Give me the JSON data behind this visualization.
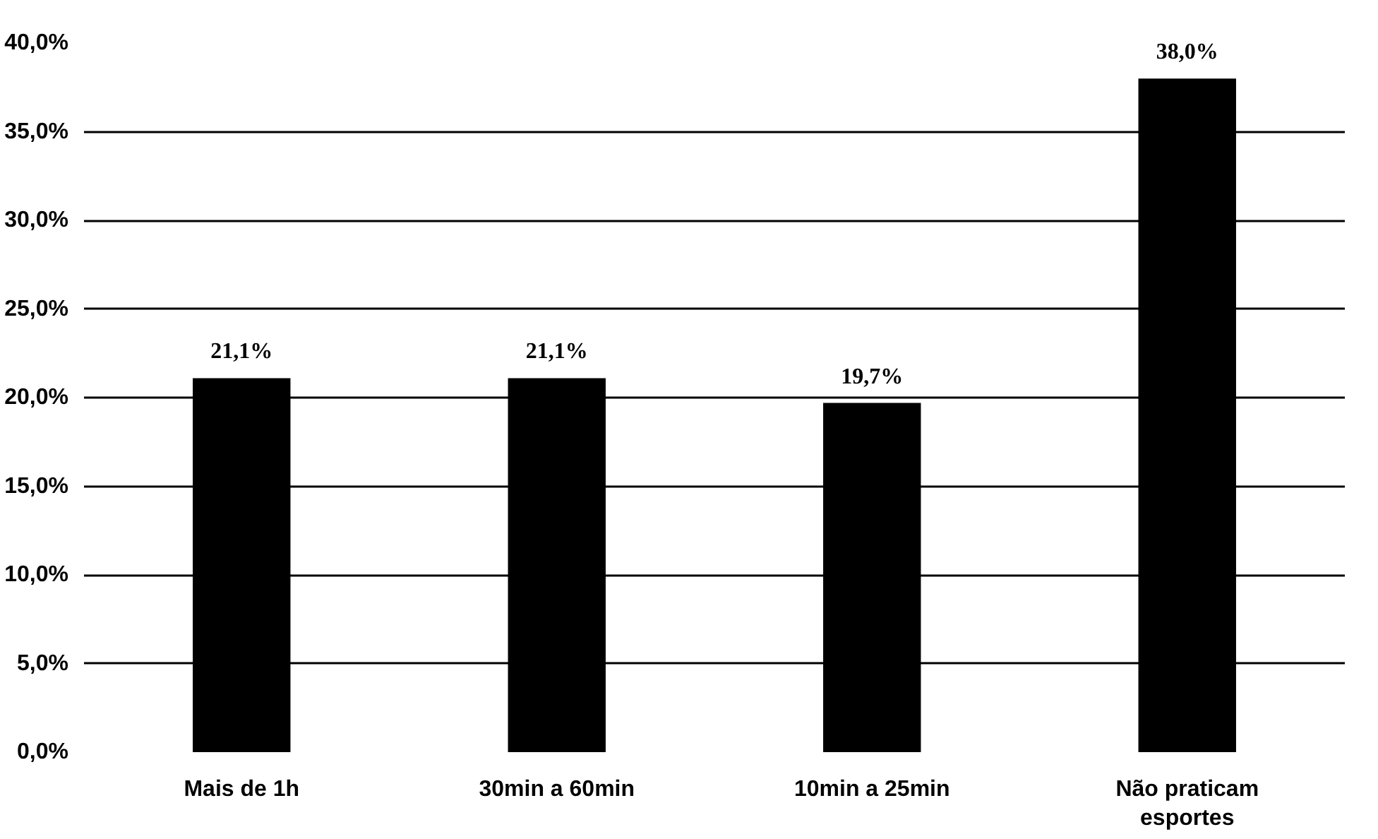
{
  "chart_data": {
    "type": "bar",
    "categories": [
      "Mais de 1h",
      "30min a 60min",
      "10min a 25min",
      "Não praticam esportes"
    ],
    "values": [
      21.1,
      21.1,
      19.7,
      38.0
    ],
    "value_labels": [
      "21,1%",
      "21,1%",
      "19,7%",
      "38,0%"
    ],
    "color": "#000000",
    "ylim": [
      0,
      40
    ],
    "yticks": [
      {
        "value": 0,
        "label": "0,0%"
      },
      {
        "value": 5,
        "label": "5,0%"
      },
      {
        "value": 10,
        "label": "10,0%"
      },
      {
        "value": 15,
        "label": "15,0%"
      },
      {
        "value": 20,
        "label": "20,0%"
      },
      {
        "value": 25,
        "label": "25,0%"
      },
      {
        "value": 30,
        "label": "30,0%"
      },
      {
        "value": 35,
        "label": "35,0%"
      },
      {
        "value": 40,
        "label": "40,0%"
      }
    ],
    "grid": "y"
  }
}
